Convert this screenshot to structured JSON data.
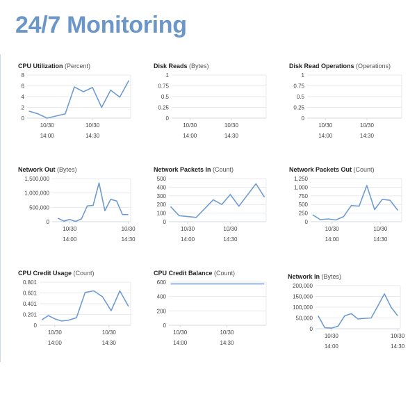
{
  "page": {
    "title": "24/7 Monitoring"
  },
  "chart_data": [
    {
      "type": "line",
      "title": "CPU Utilization",
      "unit": "(Percent)",
      "ylim": [
        0,
        8
      ],
      "yticks": [
        0,
        2,
        4,
        6,
        8
      ],
      "xticks": [
        {
          "x": 14.0,
          "date": "10/30",
          "time": "14:00"
        },
        {
          "x": 14.5,
          "date": "10/30",
          "time": "14:30"
        }
      ],
      "series": [
        {
          "x": [
            13.8,
            13.9,
            14.0,
            14.1,
            14.2,
            14.3,
            14.4,
            14.5,
            14.6,
            14.7,
            14.8,
            14.9
          ],
          "y": [
            1.3,
            0.8,
            0.0,
            0.4,
            0.8,
            5.8,
            4.9,
            5.7,
            2.0,
            5.2,
            3.9,
            7.0
          ]
        }
      ],
      "xlim": [
        13.78,
        14.92
      ]
    },
    {
      "type": "line",
      "title": "Disk Reads",
      "unit": "(Bytes)",
      "ylim": [
        0,
        1
      ],
      "yticks": [
        0,
        0.25,
        0.5,
        0.75,
        1
      ],
      "ytick_labels": [
        "0",
        "0.25",
        "0.5",
        "0.75",
        "1"
      ],
      "xticks": [
        {
          "x": 14.0,
          "date": "10/30",
          "time": "14:00"
        },
        {
          "x": 14.5,
          "date": "10/30",
          "time": "14:30"
        }
      ],
      "series": [],
      "xlim": [
        13.78,
        14.92
      ]
    },
    {
      "type": "line",
      "title": "Disk Read Operations",
      "unit": "(Operations)",
      "ylim": [
        0,
        1
      ],
      "yticks": [
        0,
        0.25,
        0.5,
        0.75,
        1
      ],
      "ytick_labels": [
        "0",
        "0.25",
        "0.5",
        "0.75",
        "1"
      ],
      "xticks": [
        {
          "x": 14.0,
          "date": "10/30",
          "time": "14:00"
        },
        {
          "x": 14.5,
          "date": "10/30",
          "time": "14:30"
        }
      ],
      "series": [],
      "xlim": [
        13.78,
        14.92
      ]
    },
    {
      "type": "line",
      "title": "Network Out",
      "unit": "(Bytes)",
      "ylim": [
        0,
        1500000
      ],
      "yticks": [
        0,
        500000,
        1000000,
        1500000
      ],
      "ytick_labels": [
        "0",
        "500,000",
        "1,000,000",
        "1,500,000"
      ],
      "xticks": [
        {
          "x": 14.0,
          "date": "10/30",
          "time": "14:00"
        },
        {
          "x": 14.5,
          "date": "10/30",
          "time": "14:30"
        }
      ],
      "series": [
        {
          "x": [
            13.9,
            13.95,
            14.0,
            14.05,
            14.1,
            14.15,
            14.2,
            14.25,
            14.3,
            14.35,
            14.4,
            14.45,
            14.5
          ],
          "y": [
            120000,
            20000,
            80000,
            10000,
            100000,
            550000,
            570000,
            1350000,
            380000,
            780000,
            720000,
            250000,
            250000
          ]
        }
      ],
      "xlim": [
        13.85,
        14.52
      ]
    },
    {
      "type": "line",
      "title": "Network Packets In",
      "unit": "(Count)",
      "ylim": [
        0,
        500
      ],
      "yticks": [
        0,
        100,
        200,
        300,
        400,
        500
      ],
      "xticks": [
        {
          "x": 14.0,
          "date": "10/30",
          "time": "14:00"
        },
        {
          "x": 14.5,
          "date": "10/30",
          "time": "14:30"
        }
      ],
      "series": [
        {
          "x": [
            13.8,
            13.9,
            14.1,
            14.3,
            14.4,
            14.5,
            14.6,
            14.8,
            14.9
          ],
          "y": [
            175,
            70,
            50,
            255,
            200,
            315,
            180,
            440,
            285
          ]
        }
      ],
      "xlim": [
        13.78,
        14.92
      ]
    },
    {
      "type": "line",
      "title": "Network Packets Out",
      "unit": "(Count)",
      "ylim": [
        0,
        1250
      ],
      "yticks": [
        0,
        250,
        500,
        750,
        1000,
        1250
      ],
      "ytick_labels": [
        "0",
        "250",
        "500",
        "750",
        "1,000",
        "1,250"
      ],
      "xticks": [
        {
          "x": 14.0,
          "date": "10/30",
          "time": "14:00"
        },
        {
          "x": 14.5,
          "date": "10/30",
          "time": "14:30"
        }
      ],
      "series": [
        {
          "x": [
            13.8,
            13.88,
            13.96,
            14.04,
            14.12,
            14.2,
            14.28,
            14.36,
            14.44,
            14.52,
            14.6,
            14.68
          ],
          "y": [
            200,
            60,
            80,
            50,
            150,
            470,
            450,
            1050,
            350,
            650,
            620,
            330
          ]
        }
      ],
      "xlim": [
        13.78,
        14.72
      ]
    },
    {
      "type": "line",
      "title": "CPU Credit Usage",
      "unit": "(Count)",
      "ylim": [
        0,
        0.801
      ],
      "yticks": [
        0,
        0.201,
        0.401,
        0.601,
        0.801
      ],
      "ytick_labels": [
        "0",
        "0.201",
        "0.401",
        "0.601",
        "0.801"
      ],
      "xticks": [
        {
          "x": 14.0,
          "date": "10/30",
          "time": "14:00"
        },
        {
          "x": 14.5,
          "date": "10/30",
          "time": "14:30"
        }
      ],
      "series": [
        {
          "x": [
            13.88,
            13.94,
            14.0,
            14.06,
            14.12,
            14.2,
            14.28,
            14.36,
            14.44,
            14.52,
            14.6,
            14.68
          ],
          "y": [
            0.1,
            0.18,
            0.12,
            0.08,
            0.09,
            0.14,
            0.61,
            0.64,
            0.53,
            0.27,
            0.64,
            0.35
          ]
        }
      ],
      "xlim": [
        13.86,
        14.7
      ]
    },
    {
      "type": "line",
      "title": "CPU Credit Balance",
      "unit": "(Count)",
      "ylim": [
        0,
        600
      ],
      "yticks": [
        0,
        200,
        400,
        600
      ],
      "xticks": [
        {
          "x": 14.0,
          "date": "10/30",
          "time": "14:00"
        },
        {
          "x": 14.5,
          "date": "10/30",
          "time": "14:30"
        }
      ],
      "series": [
        {
          "x": [
            13.9,
            14.9
          ],
          "y": [
            576,
            576
          ]
        }
      ],
      "xlim": [
        13.88,
        14.92
      ]
    },
    {
      "type": "line",
      "title": "Network In",
      "unit": "(Bytes)",
      "ylim": [
        0,
        200000
      ],
      "yticks": [
        0,
        50000,
        100000,
        150000,
        200000
      ],
      "ytick_labels": [
        "0",
        "50,000",
        "100,000",
        "150,000",
        "200,000"
      ],
      "xticks": [
        {
          "x": 14.0,
          "date": "10/30",
          "time": "14:00"
        },
        {
          "x": 14.5,
          "date": "10/30",
          "time": "14:30"
        }
      ],
      "series": [
        {
          "x": [
            13.9,
            13.95,
            14.0,
            14.05,
            14.1,
            14.15,
            14.2,
            14.25,
            14.3,
            14.35,
            14.4,
            14.45,
            14.5
          ],
          "y": [
            60000,
            5000,
            3000,
            12000,
            60000,
            70000,
            45000,
            48000,
            50000,
            105000,
            162000,
            100000,
            60000
          ]
        }
      ],
      "xlim": [
        13.88,
        14.52
      ]
    }
  ],
  "colors": {
    "title": "#6b96c8",
    "series": "#6f9bd1",
    "grid": "#e6e9ee"
  }
}
